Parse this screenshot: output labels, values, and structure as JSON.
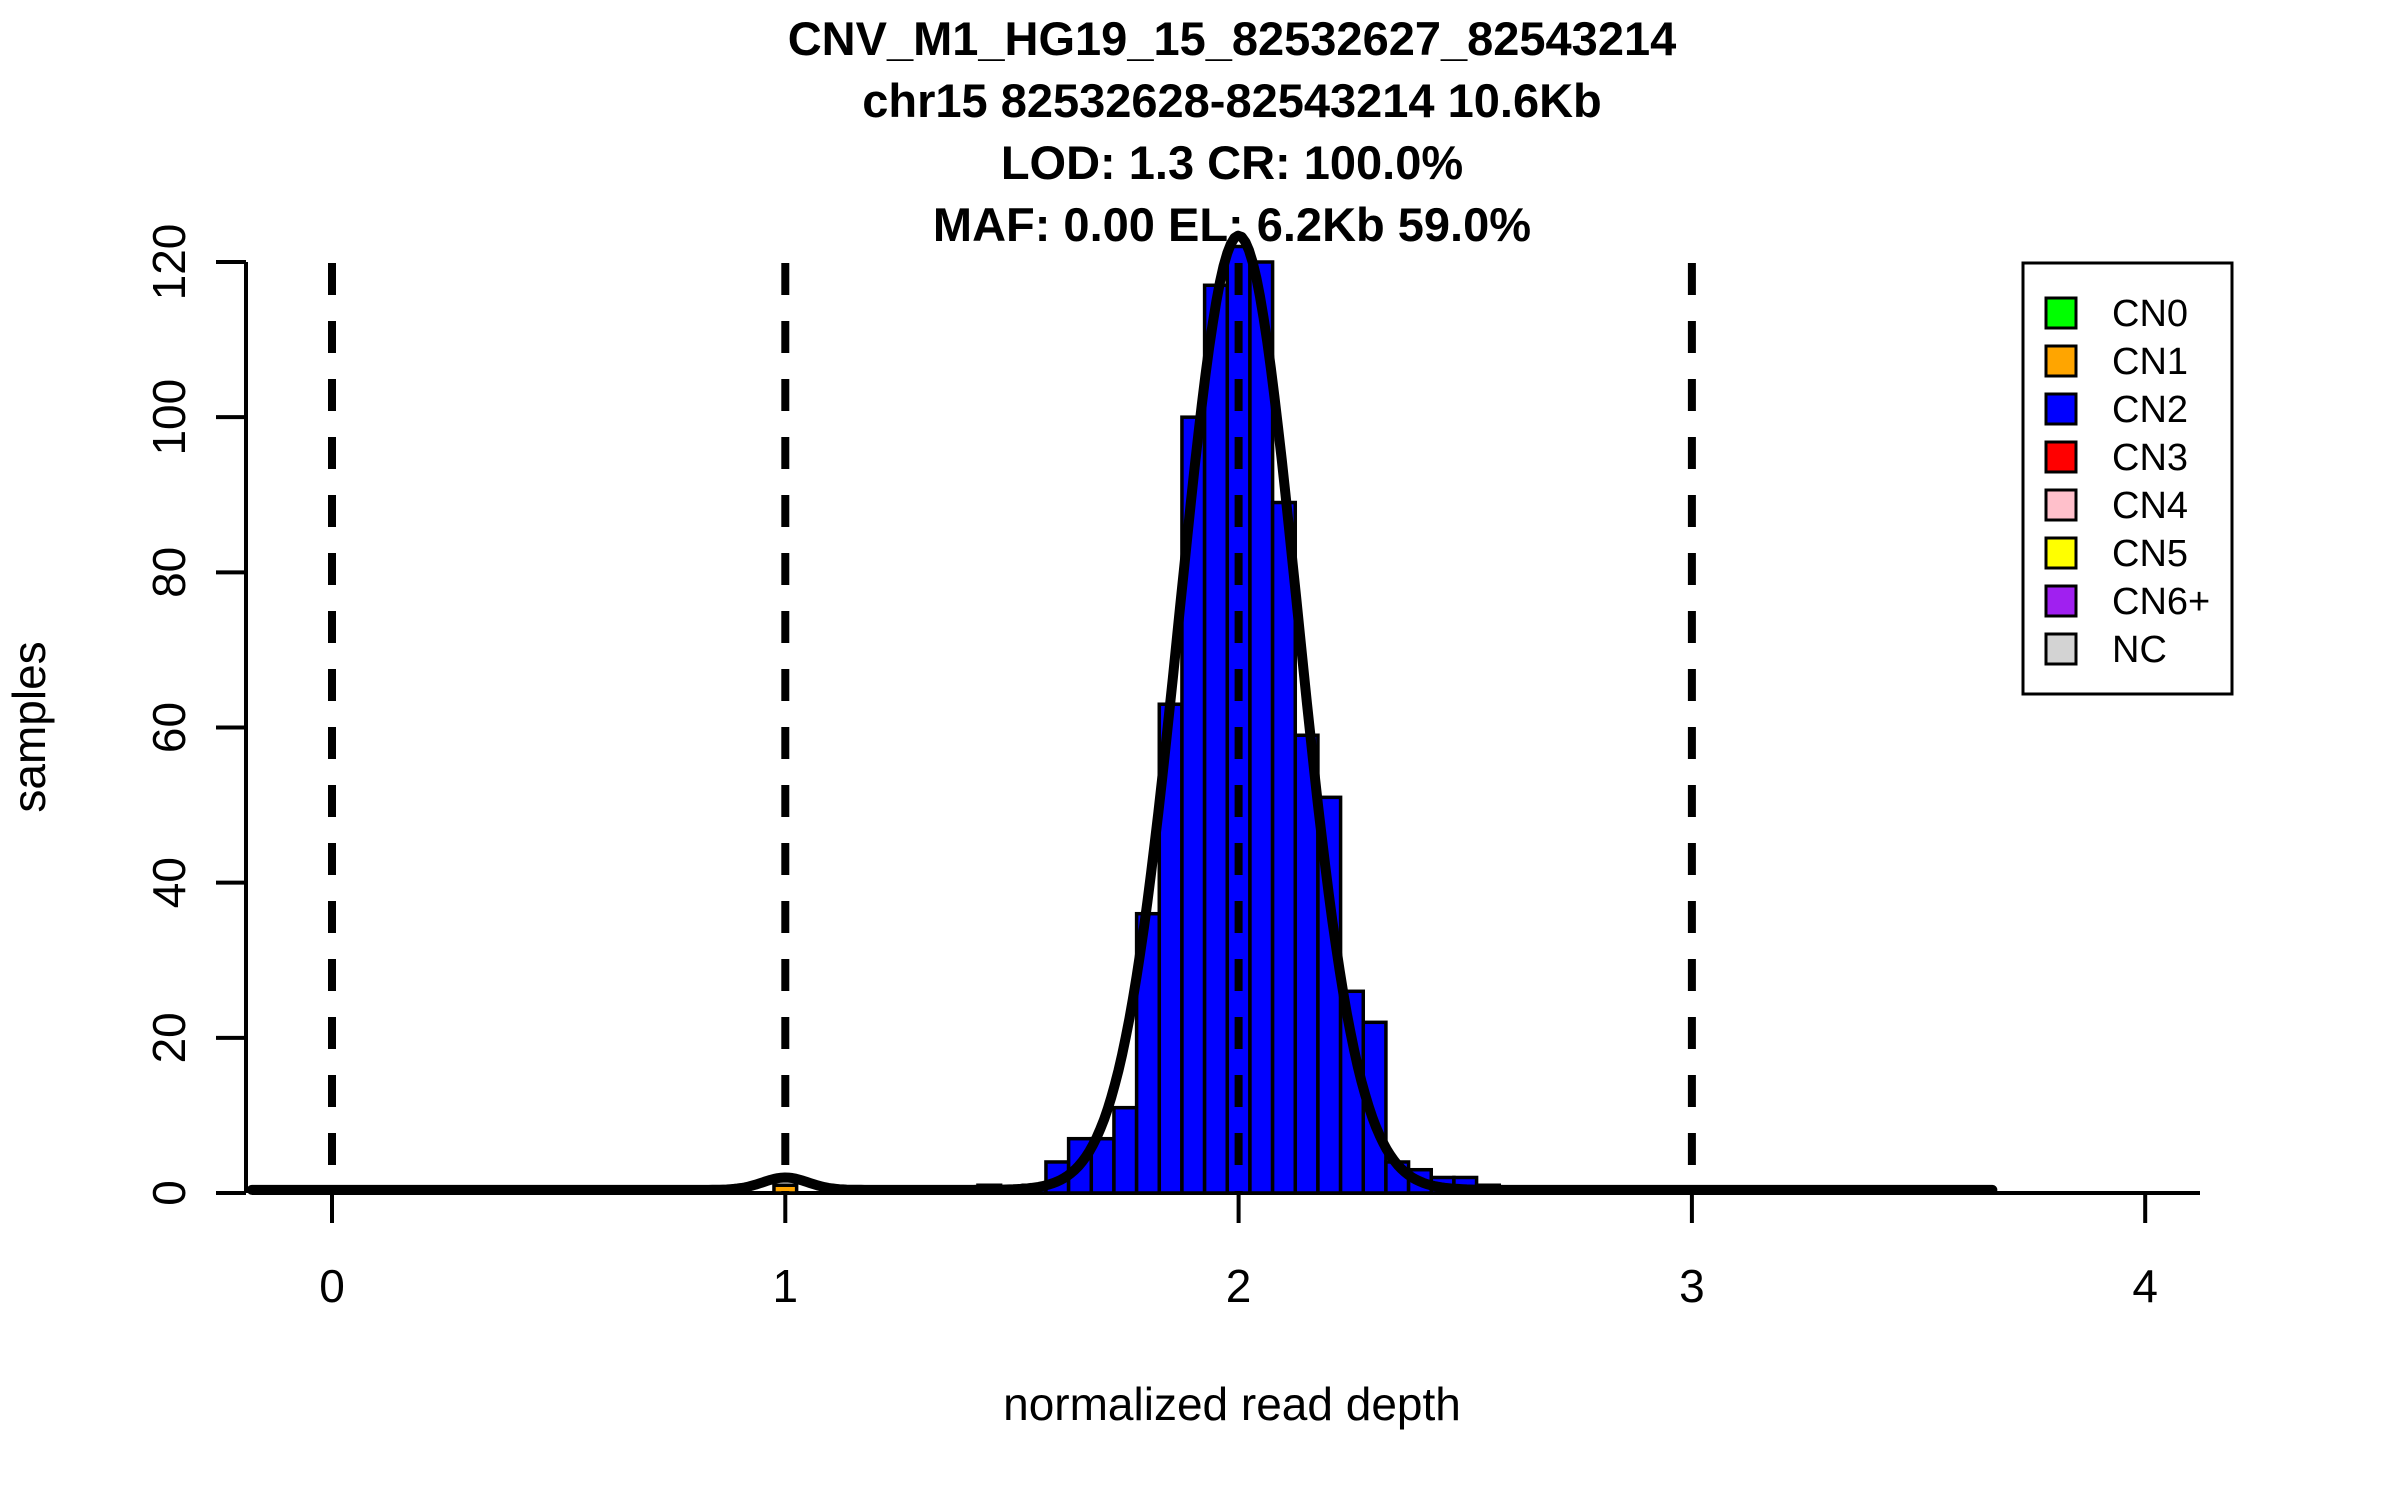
{
  "chart_data": {
    "type": "bar",
    "subtype": "histogram-with-density-curve",
    "title_lines": [
      "CNV_M1_HG19_15_82532627_82543214",
      "chr15 82532628-82543214 10.6Kb",
      "LOD: 1.3 CR: 100.0%",
      "MAF: 0.00 EL: 6.2Kb 59.0%"
    ],
    "xlabel": "normalized read depth",
    "ylabel": "samples",
    "x_ticks": [
      0,
      1,
      2,
      3,
      4
    ],
    "y_ticks": [
      0,
      20,
      40,
      60,
      80,
      100,
      120
    ],
    "xlim": [
      -0.2,
      4.15
    ],
    "ylim": [
      0,
      124
    ],
    "grid": false,
    "bin_width": 0.05,
    "bars": [
      {
        "center": 1.0,
        "count": 1,
        "cn": "CN1"
      },
      {
        "center": 1.45,
        "count": 1,
        "cn": "CN2"
      },
      {
        "center": 1.55,
        "count": 1,
        "cn": "CN2"
      },
      {
        "center": 1.6,
        "count": 4,
        "cn": "CN2"
      },
      {
        "center": 1.65,
        "count": 7,
        "cn": "CN2"
      },
      {
        "center": 1.7,
        "count": 7,
        "cn": "CN2"
      },
      {
        "center": 1.75,
        "count": 11,
        "cn": "CN2"
      },
      {
        "center": 1.8,
        "count": 36,
        "cn": "CN2"
      },
      {
        "center": 1.85,
        "count": 63,
        "cn": "CN2"
      },
      {
        "center": 1.9,
        "count": 100,
        "cn": "CN2"
      },
      {
        "center": 1.95,
        "count": 117,
        "cn": "CN2"
      },
      {
        "center": 2.0,
        "count": 122,
        "cn": "CN2"
      },
      {
        "center": 2.05,
        "count": 120,
        "cn": "CN2"
      },
      {
        "center": 2.1,
        "count": 89,
        "cn": "CN2"
      },
      {
        "center": 2.15,
        "count": 59,
        "cn": "CN2"
      },
      {
        "center": 2.2,
        "count": 51,
        "cn": "CN2"
      },
      {
        "center": 2.25,
        "count": 26,
        "cn": "CN2"
      },
      {
        "center": 2.3,
        "count": 22,
        "cn": "CN2"
      },
      {
        "center": 2.35,
        "count": 4,
        "cn": "CN2"
      },
      {
        "center": 2.4,
        "count": 3,
        "cn": "CN2"
      },
      {
        "center": 2.45,
        "count": 2,
        "cn": "CN2"
      },
      {
        "center": 2.5,
        "count": 2,
        "cn": "CN2"
      },
      {
        "center": 2.55,
        "count": 1,
        "cn": "CN2"
      }
    ],
    "dashed_guides_x": [
      0,
      1,
      2,
      3
    ],
    "density_curve": {
      "mu": 2.0,
      "sigma": 0.13,
      "amplitude": 123,
      "bump_mu": 1.0,
      "bump_sigma": 0.05,
      "bump_amplitude": 1.6,
      "baseline": 0.4,
      "x_range": [
        -0.177,
        3.67
      ]
    },
    "legend": {
      "position": "top-right",
      "entries": [
        {
          "label": "CN0",
          "color": "#00FF00"
        },
        {
          "label": "CN1",
          "color": "#FFA500"
        },
        {
          "label": "CN2",
          "color": "#0000FF"
        },
        {
          "label": "CN3",
          "color": "#FF0000"
        },
        {
          "label": "CN4",
          "color": "#FFC0CB"
        },
        {
          "label": "CN5",
          "color": "#FFFF00"
        },
        {
          "label": "CN6+",
          "color": "#A020F0"
        },
        {
          "label": "NC",
          "color": "#D3D3D3"
        }
      ]
    },
    "colors": {
      "bar_border": "#000000",
      "curve": "#000000",
      "axis": "#000000",
      "background": "#FFFFFF",
      "cn_map": {
        "CN0": "#00FF00",
        "CN1": "#FFA500",
        "CN2": "#0000FF",
        "CN3": "#FF0000",
        "CN4": "#FFC0CB",
        "CN5": "#FFFF00",
        "CN6+": "#A020F0",
        "NC": "#D3D3D3"
      }
    }
  }
}
